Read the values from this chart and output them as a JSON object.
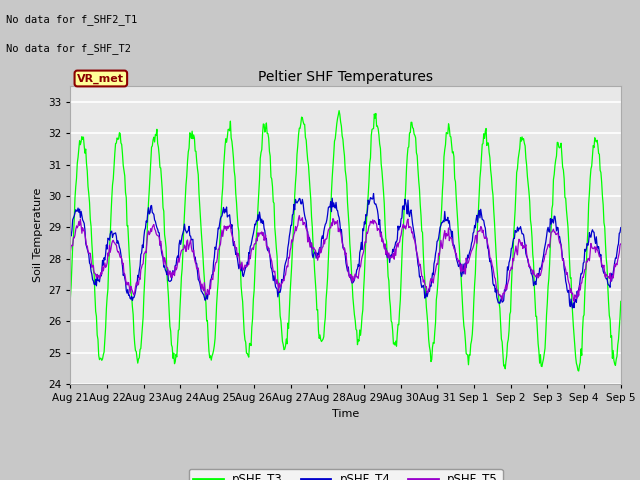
{
  "title": "Peltier SHF Temperatures",
  "xlabel": "Time",
  "ylabel": "Soil Temperature",
  "ylim": [
    24.0,
    33.5
  ],
  "yticks": [
    24.0,
    25.0,
    26.0,
    27.0,
    28.0,
    29.0,
    30.0,
    31.0,
    32.0,
    33.0
  ],
  "text_no_data_1": "No data for f_SHF2_T1",
  "text_no_data_2": "No data for f_SHF_T2",
  "vr_met_label": "VR_met",
  "fig_bg_color": "#c8c8c8",
  "plot_bg_color": "#e8e8e8",
  "grid_color": "#ffffff",
  "line_colors": {
    "pSHF_T3": "#00ff00",
    "pSHF_T4": "#0000cc",
    "pSHF_T5": "#9900cc"
  },
  "x_tick_labels": [
    "Aug 21",
    "Aug 22",
    "Aug 23",
    "Aug 24",
    "Aug 25",
    "Aug 26",
    "Aug 27",
    "Aug 28",
    "Aug 29",
    "Aug 30",
    "Aug 31",
    "Sep 1",
    "Sep 2",
    "Sep 3",
    "Sep 4",
    "Sep 5"
  ],
  "num_days": 15,
  "pts_per_day": 48,
  "T3_mean": 28.5,
  "T3_amp": 3.6,
  "T4_mean": 28.1,
  "T4_amp": 1.1,
  "T5_mean": 27.95,
  "T5_amp": 0.75,
  "seed": 42
}
